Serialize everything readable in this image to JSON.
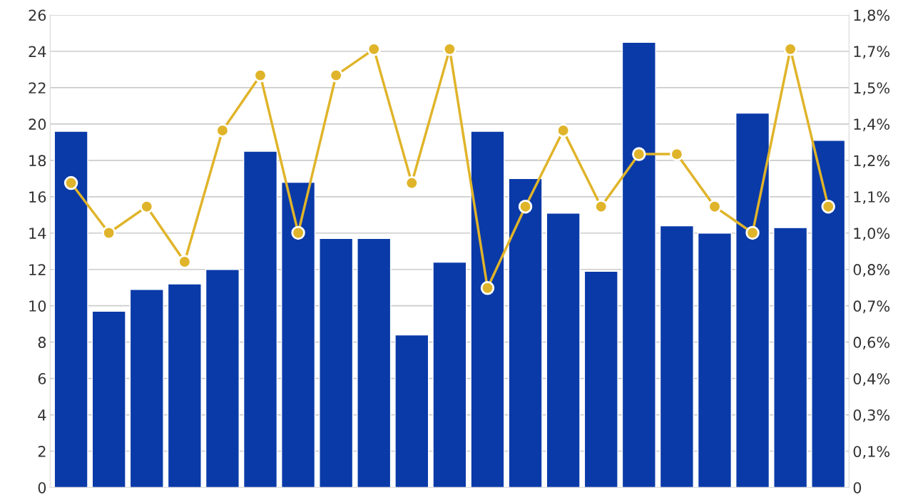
{
  "chart_data": {
    "type": "bar",
    "categories": [
      null,
      null,
      null,
      null,
      null,
      null,
      null,
      null,
      null,
      null,
      null,
      null,
      null,
      null,
      null,
      null,
      null,
      null,
      null,
      null,
      null
    ],
    "series": [
      {
        "color": "#0a3aa8",
        "values": [
          19.6,
          9.7,
          10.9,
          11.2,
          12.0,
          18.5,
          16.8,
          13.7,
          13.7,
          8.4,
          12.4,
          19.6,
          17.0,
          15.1,
          11.9,
          24.5,
          14.4,
          14.0,
          20.6,
          14.3,
          19.1
        ]
      },
      {
        "type": "line",
        "axis": "y2",
        "color": "#e0b42a",
        "marker": "circle",
        "values": [
          1.16,
          0.97,
          1.07,
          0.86,
          1.36,
          1.57,
          0.97,
          1.57,
          1.67,
          1.16,
          1.67,
          0.76,
          1.07,
          1.36,
          1.07,
          1.27,
          1.27,
          1.07,
          0.97,
          1.67,
          1.07
        ]
      }
    ],
    "ylim": [
      0,
      26
    ],
    "yticks": [
      0,
      2,
      4,
      6,
      8,
      10,
      12,
      14,
      16,
      18,
      20,
      22,
      24,
      26
    ],
    "y2lim": [
      0,
      1.8
    ],
    "y2ticks": [
      {
        "value": 0,
        "label": "0"
      },
      {
        "value": 0.138,
        "label": "0,1%"
      },
      {
        "value": 0.277,
        "label": "0,3%"
      },
      {
        "value": 0.415,
        "label": "0,4%"
      },
      {
        "value": 0.554,
        "label": "0,6%"
      },
      {
        "value": 0.692,
        "label": "0,7%"
      },
      {
        "value": 0.831,
        "label": "0,8%"
      },
      {
        "value": 0.969,
        "label": "1,0%"
      },
      {
        "value": 1.108,
        "label": "1,1%"
      },
      {
        "value": 1.246,
        "label": "1,2%"
      },
      {
        "value": 1.385,
        "label": "1,4%"
      },
      {
        "value": 1.523,
        "label": "1,5%"
      },
      {
        "value": 1.662,
        "label": "1,7%"
      },
      {
        "value": 1.8,
        "label": "1,8%"
      }
    ],
    "grid": "y",
    "tick_labels": "y"
  }
}
